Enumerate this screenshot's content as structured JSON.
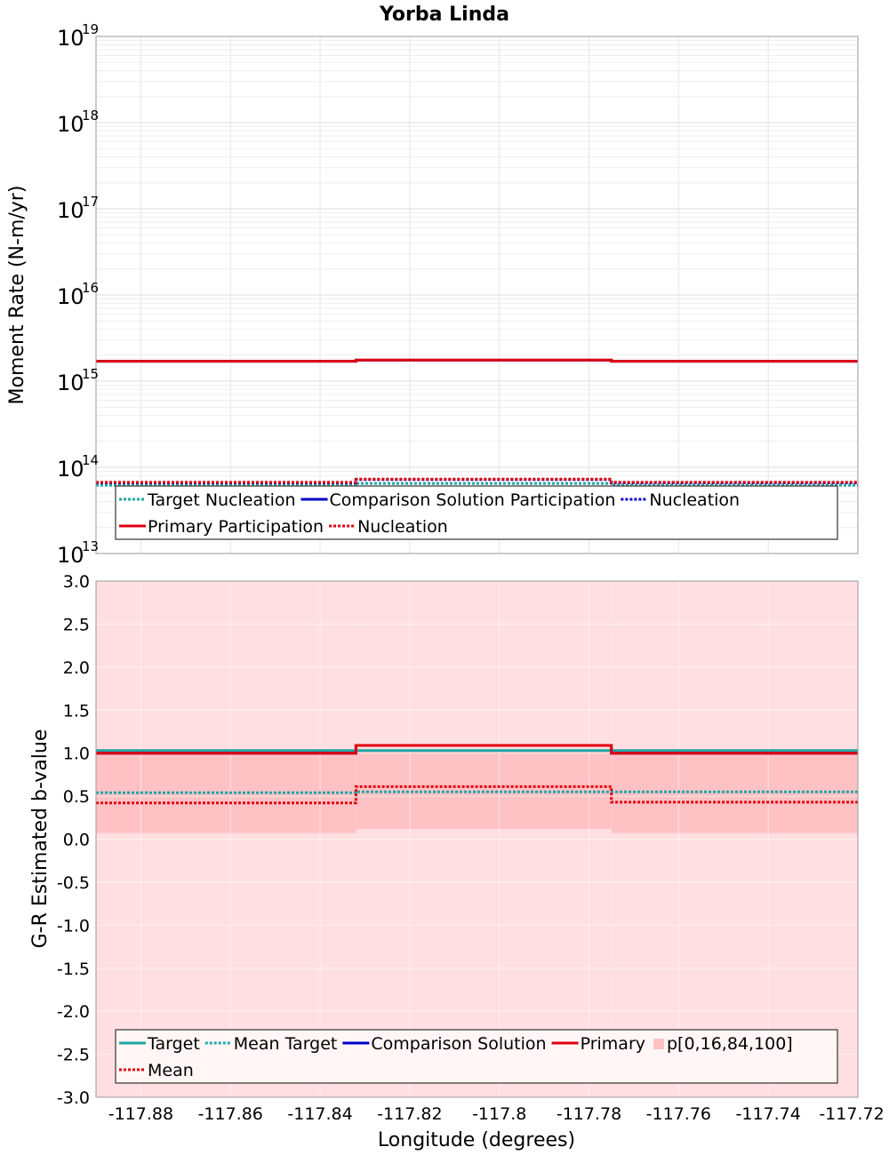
{
  "title": "Yorba Linda",
  "colors": {
    "target": "#1fa6a6",
    "comparison": "#0000c8",
    "primary": "#e0000e",
    "band_outer": "#ffdfe1",
    "band_inner": "#ffc2c4",
    "grid": "#e6e6e6",
    "frame": "#999999"
  },
  "chart_data": [
    {
      "type": "line",
      "subtype": "step",
      "yscale": "log",
      "ylabel": "Moment Rate (N-m/yr)",
      "ylim_exponents": [
        13,
        19
      ],
      "ytick_exponents": [
        13,
        14,
        15,
        16,
        17,
        18,
        19
      ],
      "xlim": [
        -117.89,
        -117.72
      ],
      "bin_edges": [
        -117.89,
        -117.832,
        -117.775,
        -117.72
      ],
      "series": [
        {
          "name": "Target Nucleation",
          "style": "dotted",
          "color_key": "target",
          "values": [
            62000000000000,
            65000000000000,
            62000000000000
          ]
        },
        {
          "name": "Comparison Solution Participation",
          "style": "solid",
          "color_key": "comparison",
          "values": [
            1700000000000000,
            1750000000000000,
            1700000000000000
          ]
        },
        {
          "name": "Nucleation",
          "style": "dotted",
          "color_key": "comparison",
          "values": [
            66000000000000,
            72000000000000,
            66000000000000
          ]
        },
        {
          "name": "Primary Participation",
          "style": "solid",
          "color_key": "primary",
          "values": [
            1700000000000000,
            1760000000000000,
            1700000000000000
          ]
        },
        {
          "name": "Nucleation",
          "style": "dotted",
          "color_key": "primary",
          "values": [
            67000000000000,
            73000000000000,
            67000000000000
          ]
        }
      ],
      "legend": {
        "position": "bottom",
        "entries": [
          {
            "label": "Target Nucleation",
            "style": "dotted",
            "color_key": "target"
          },
          {
            "label": "Comparison Solution Participation",
            "style": "solid",
            "color_key": "comparison"
          },
          {
            "label": "Nucleation",
            "style": "dotted",
            "color_key": "comparison"
          },
          {
            "label": "Primary Participation",
            "style": "solid",
            "color_key": "primary"
          },
          {
            "label": "Nucleation",
            "style": "dotted",
            "color_key": "primary"
          }
        ]
      }
    },
    {
      "type": "line",
      "subtype": "step",
      "ylabel": "G-R Estimated b-value",
      "xlabel": "Longitude (degrees)",
      "ylim": [
        -3.0,
        3.0
      ],
      "yticks": [
        "3.0",
        "2.5",
        "2.0",
        "1.5",
        "1.0",
        "0.5",
        "0.0",
        "-0.5",
        "-1.0",
        "-1.5",
        "-2.0",
        "-2.5",
        "-3.0"
      ],
      "xlim": [
        -117.89,
        -117.72
      ],
      "xticks": [
        "-117.88",
        "-117.86",
        "-117.84",
        "-117.82",
        "-117.8",
        "-117.78",
        "-117.76",
        "-117.74",
        "-117.72"
      ],
      "bin_edges": [
        -117.89,
        -117.832,
        -117.775,
        -117.72
      ],
      "bands": [
        {
          "name": "p[0,100]",
          "color_key": "band_outer",
          "lower": [
            -3.0,
            -3.0,
            -3.0
          ],
          "upper": [
            3.0,
            3.0,
            3.0
          ]
        },
        {
          "name": "p[16,84]",
          "color_key": "band_inner",
          "lower": [
            0.07,
            0.12,
            0.07
          ],
          "upper": [
            1.02,
            1.03,
            1.03
          ]
        }
      ],
      "series": [
        {
          "name": "Target",
          "style": "solid",
          "color_key": "target",
          "values": [
            1.03,
            1.03,
            1.03
          ]
        },
        {
          "name": "Mean Target",
          "style": "dotted",
          "color_key": "target",
          "values": [
            0.54,
            0.55,
            0.55
          ]
        },
        {
          "name": "Comparison Solution",
          "style": "solid",
          "color_key": "comparison",
          "values": [
            1.0,
            1.09,
            1.0
          ]
        },
        {
          "name": "Primary",
          "style": "solid",
          "color_key": "primary",
          "values": [
            1.0,
            1.09,
            1.0
          ]
        },
        {
          "name": "Mean",
          "style": "dotted",
          "color_key": "primary",
          "values": [
            0.42,
            0.61,
            0.43
          ]
        }
      ],
      "legend": {
        "position": "bottom",
        "entries": [
          {
            "label": "Target",
            "style": "solid",
            "color_key": "target"
          },
          {
            "label": "Mean Target",
            "style": "dotted",
            "color_key": "target"
          },
          {
            "label": "Comparison Solution",
            "style": "solid",
            "color_key": "comparison"
          },
          {
            "label": "Primary",
            "style": "solid",
            "color_key": "primary"
          },
          {
            "label": "p[0,16,84,100]",
            "style": "box",
            "color_key": "band_inner"
          },
          {
            "label": "Mean",
            "style": "dotted",
            "color_key": "primary"
          }
        ]
      }
    }
  ]
}
